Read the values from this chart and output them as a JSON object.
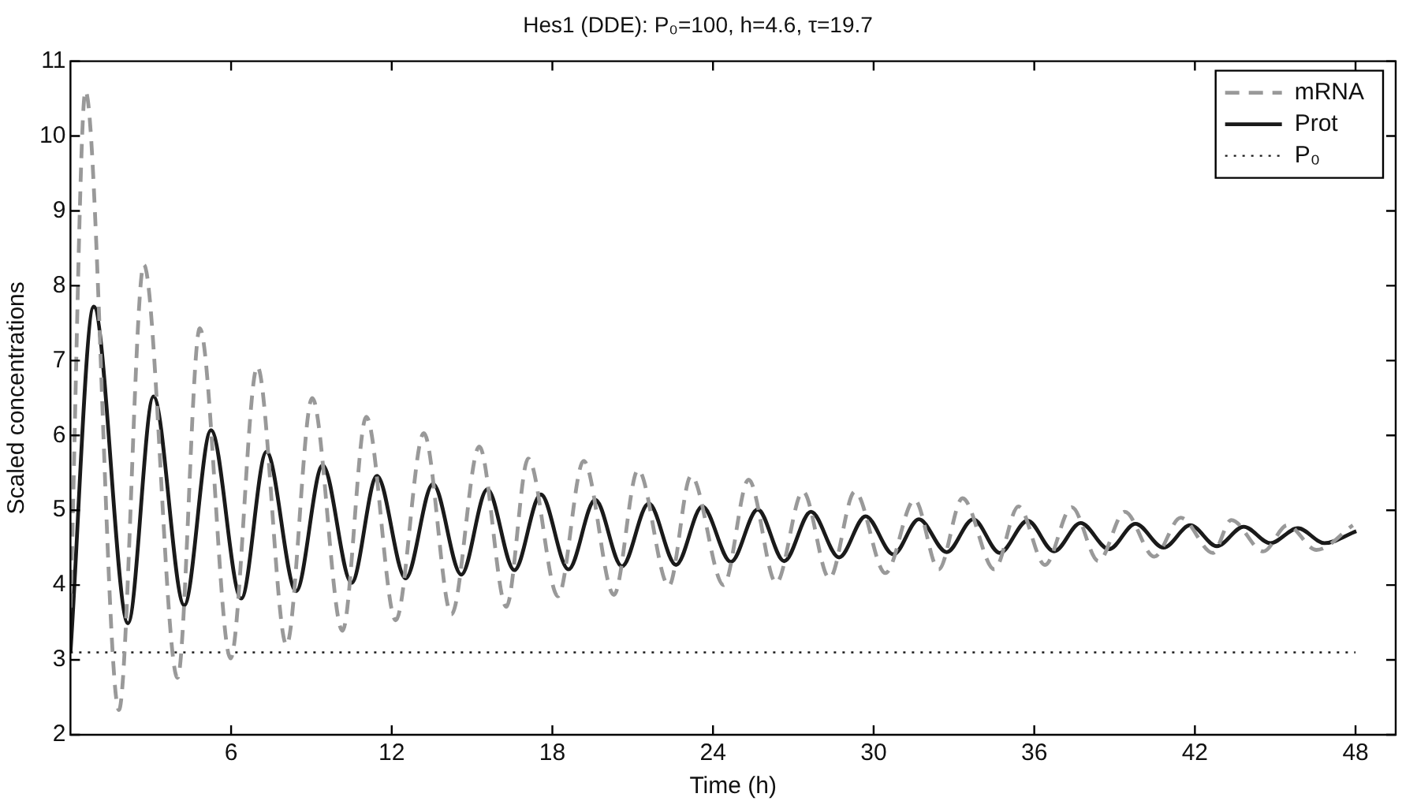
{
  "chart_data": {
    "type": "line",
    "title": "Hes1 (DDE): P₀=100, h=4.6, τ=19.7",
    "xlabel": "Time (h)",
    "ylabel": "Scaled concentrations",
    "xlim": [
      0,
      49.5
    ],
    "xticks": [
      6,
      12,
      18,
      24,
      30,
      36,
      42,
      48
    ],
    "ylim": [
      2,
      11
    ],
    "yticks": [
      2,
      3,
      4,
      5,
      6,
      7,
      8,
      9,
      10,
      11
    ],
    "grid": false,
    "legend": "top right",
    "marker": "none",
    "series": [
      {
        "name": "mRNA",
        "color": "#999999",
        "line_style": "dashed",
        "x": [
          0,
          0.56,
          1.81,
          2.74,
          4.0,
          4.83,
          5.98,
          6.98,
          8.07,
          9.03,
          10.16,
          11.05,
          12.15,
          13.2,
          14.23,
          15.27,
          16.28,
          17.1,
          18.21,
          19.17,
          20.3,
          21.2,
          22.35,
          23.18,
          24.4,
          25.33,
          26.36,
          27.36,
          28.35,
          29.3,
          30.44,
          31.53,
          32.43,
          33.32,
          34.51,
          35.41,
          36.4,
          37.4,
          38.4,
          39.38,
          40.48,
          41.47,
          42.67,
          43.36,
          44.56,
          45.45,
          46.54,
          47.9
        ],
        "values": [
          3.7,
          10.6,
          2.33,
          8.28,
          2.76,
          7.43,
          3.02,
          6.92,
          3.2,
          6.5,
          3.39,
          6.25,
          3.53,
          6.03,
          3.61,
          5.85,
          3.71,
          5.69,
          3.85,
          5.66,
          3.87,
          5.54,
          3.99,
          5.46,
          4.0,
          5.41,
          4.03,
          5.25,
          4.09,
          5.25,
          4.16,
          5.14,
          4.21,
          5.16,
          4.21,
          5.05,
          4.27,
          5.04,
          4.32,
          4.98,
          4.38,
          4.9,
          4.43,
          4.87,
          4.45,
          4.8,
          4.47,
          4.8
        ]
      },
      {
        "name": "Prot",
        "color": "#1a1a1a",
        "line_style": "solid",
        "x": [
          0,
          0.87,
          2.15,
          3.1,
          4.25,
          5.25,
          6.38,
          7.32,
          8.43,
          9.42,
          10.5,
          11.45,
          12.52,
          13.54,
          14.6,
          15.57,
          16.58,
          17.57,
          18.6,
          19.6,
          20.6,
          21.6,
          22.62,
          23.6,
          24.67,
          25.67,
          26.66,
          27.66,
          28.71,
          29.7,
          30.74,
          31.69,
          32.73,
          33.72,
          34.71,
          35.75,
          36.74,
          37.73,
          38.79,
          39.78,
          40.83,
          41.83,
          42.82,
          43.82,
          44.82,
          45.85,
          46.84,
          48.03
        ],
        "values": [
          3.1,
          7.72,
          3.49,
          6.52,
          3.73,
          6.07,
          3.82,
          5.78,
          3.92,
          5.6,
          4.03,
          5.46,
          4.09,
          5.35,
          4.14,
          5.28,
          4.2,
          5.21,
          4.21,
          5.14,
          4.25,
          5.09,
          4.27,
          5.05,
          4.31,
          5.01,
          4.32,
          4.98,
          4.37,
          4.92,
          4.41,
          4.88,
          4.44,
          4.88,
          4.43,
          4.86,
          4.45,
          4.83,
          4.48,
          4.82,
          4.5,
          4.8,
          4.52,
          4.78,
          4.56,
          4.76,
          4.56,
          4.72
        ]
      },
      {
        "name": "P₀",
        "color": "#1a1a1a",
        "line_style": "dotted",
        "x": [
          0,
          48
        ],
        "values": [
          3.1,
          3.1
        ]
      }
    ]
  }
}
